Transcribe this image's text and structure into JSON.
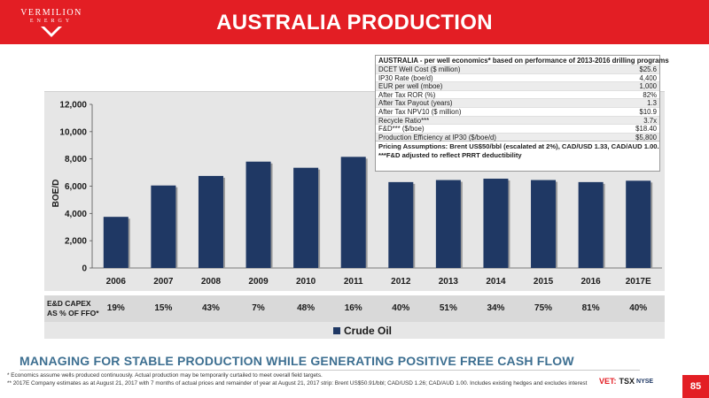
{
  "header": {
    "title": "AUSTRALIA PRODUCTION",
    "logo_name": "VERMILION",
    "logo_sub": "ENERGY"
  },
  "chart_data": {
    "type": "bar",
    "categories": [
      "2006",
      "2007",
      "2008",
      "2009",
      "2010",
      "2011",
      "2012",
      "2013",
      "2014",
      "2015",
      "2016",
      "2017E"
    ],
    "series": [
      {
        "name": "Crude Oil",
        "values": [
          3750,
          6050,
          6750,
          7800,
          7350,
          8150,
          6300,
          6450,
          6550,
          6450,
          6300,
          6400
        ]
      }
    ],
    "ylabel": "BOE/D",
    "ylim": [
      0,
      12000
    ],
    "yticks": [
      0,
      2000,
      4000,
      6000,
      8000,
      10000,
      12000
    ],
    "ytick_labels": [
      "0",
      "2,000",
      "4,000",
      "6,000",
      "8,000",
      "10,000",
      "12,000"
    ],
    "grid": false,
    "legend": "bottom-center",
    "bar_color": "#1f3864"
  },
  "capex": {
    "label_line1": "E&D CAPEX",
    "label_line2": "AS % OF FFO*",
    "values": [
      "19%",
      "15%",
      "43%",
      "7%",
      "48%",
      "16%",
      "40%",
      "51%",
      "34%",
      "75%",
      "81%",
      "40%"
    ]
  },
  "legend": {
    "label": "Crude Oil"
  },
  "economics_table": {
    "title": "AUSTRALIA - per well economics* based on performance of 2013-2016 drilling programs",
    "rows": [
      {
        "label": "DCET Well Cost ($ million)",
        "value": "$25.6"
      },
      {
        "label": "IP30 Rate (boe/d)",
        "value": "4,400"
      },
      {
        "label": "EUR per well (mboe)",
        "value": "1,000"
      },
      {
        "label": "After Tax ROR (%)",
        "value": "82%"
      },
      {
        "label": "After Tax Payout (years)",
        "value": "1.3"
      },
      {
        "label": "After Tax NPV10 ($ million)",
        "value": "$10.9"
      },
      {
        "label": "Recycle Ratio***",
        "value": "3.7x"
      },
      {
        "label": "F&D*** ($/boe)",
        "value": "$18.40"
      },
      {
        "label": "Production Efficiency at IP30 ($/boe/d)",
        "value": "$5,800"
      }
    ],
    "footer1": "Pricing Assumptions: Brent US$50/bbl (escalated at 2%), CAD/USD 1.33, CAD/AUD 1.00.",
    "footer2": "***F&D adjusted to reflect PRRT deductibility"
  },
  "tagline": "MANAGING FOR STABLE PRODUCTION WHILE GENERATING POSITIVE FREE CASH FLOW",
  "footnotes": {
    "line1": "*   Economics assume wells produced continuously.  Actual production may be temporarily curtailed to meet overall field targets.",
    "line2": "** 2017E Company estimates as at August 21, 2017 with 7 months of actual prices and remainder of year at August 21, 2017 strip: Brent US$50.91/bbl; CAD/USD 1.26; CAD/AUD 1.00. Includes existing hedges and excludes interest"
  },
  "exchanges": {
    "vet": "VET:",
    "tsx": "TSX",
    "nyse": "NYSE"
  },
  "page_number": "85",
  "colors": {
    "brand_red": "#e31e24",
    "bar_navy": "#1f3864",
    "tagline_blue": "#3d6f91"
  }
}
